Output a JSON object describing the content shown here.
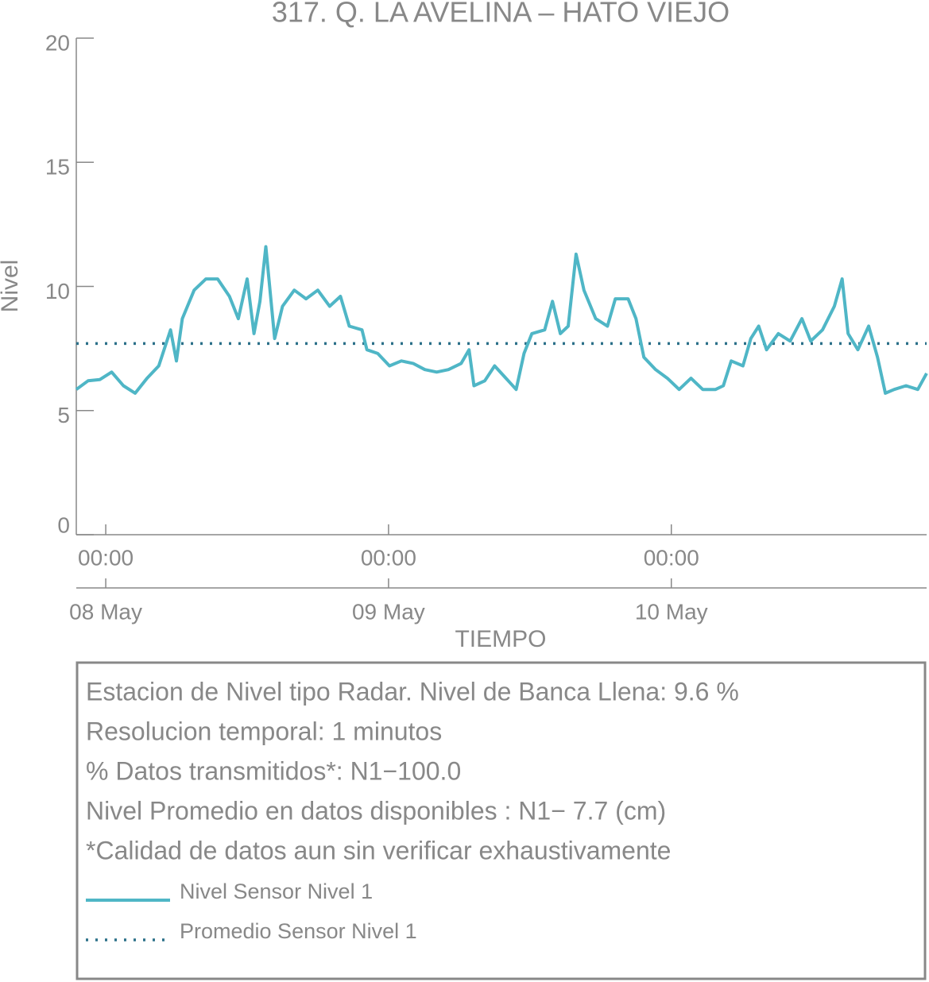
{
  "chart_data": {
    "type": "line",
    "title": "317. Q. LA AVELINA – HATO VIEJO",
    "xlabel": "TIEMPO",
    "ylabel": "Nivel",
    "x": [
      "07 May 21:30",
      "07 May 22:30",
      "07 May 23:30",
      "08 May 00:30",
      "08 May 01:30",
      "08 May 02:30",
      "08 May 03:30",
      "08 May 04:30",
      "08 May 05:30",
      "08 May 06:00",
      "08 May 06:30",
      "08 May 07:30",
      "08 May 08:30",
      "08 May 09:30",
      "08 May 10:30",
      "08 May 11:15",
      "08 May 12:00",
      "08 May 12:35",
      "08 May 13:05",
      "08 May 13:35",
      "08 May 14:20",
      "08 May 15:00",
      "08 May 16:00",
      "08 May 17:00",
      "08 May 18:00",
      "08 May 19:00",
      "08 May 19:55",
      "08 May 20:40",
      "08 May 21:45",
      "08 May 22:10",
      "08 May 23:05",
      "09 May 00:05",
      "09 May 01:05",
      "09 May 02:05",
      "09 May 03:05",
      "09 May 04:05",
      "09 May 05:05",
      "09 May 06:10",
      "09 May 06:50",
      "09 May 07:15",
      "09 May 08:10",
      "09 May 09:00",
      "09 May 10:10",
      "09 May 10:50",
      "09 May 11:30",
      "09 May 12:10",
      "09 May 13:15",
      "09 May 13:55",
      "09 May 14:35",
      "09 May 15:15",
      "09 May 15:55",
      "09 May 16:35",
      "09 May 17:35",
      "09 May 18:35",
      "09 May 19:15",
      "09 May 20:20",
      "09 May 21:00",
      "09 May 21:40",
      "09 May 22:40",
      "09 May 23:40",
      "10 May 00:40",
      "10 May 01:40",
      "10 May 02:40",
      "10 May 03:45",
      "10 May 04:25",
      "10 May 05:05",
      "10 May 06:05",
      "10 May 06:45",
      "10 May 07:25",
      "10 May 08:05",
      "10 May 09:05",
      "10 May 10:05",
      "10 May 11:05",
      "10 May 11:50",
      "10 May 12:50",
      "10 May 13:50",
      "10 May 14:30",
      "10 May 15:00",
      "10 May 15:50",
      "10 May 16:45",
      "10 May 17:30",
      "10 May 18:10",
      "10 May 18:55",
      "10 May 19:55",
      "10 May 20:55",
      "10 May 21:40"
    ],
    "series": [
      {
        "name": "Nivel Sensor Nivel 1",
        "color": "#4fb6c6",
        "values": [
          5.85,
          6.2,
          6.25,
          6.55,
          6.0,
          5.7,
          6.3,
          6.8,
          8.25,
          7.0,
          8.7,
          9.85,
          10.3,
          10.3,
          9.6,
          8.7,
          10.3,
          8.1,
          9.4,
          11.6,
          7.9,
          9.2,
          9.85,
          9.5,
          9.85,
          9.2,
          9.6,
          8.4,
          8.25,
          7.45,
          7.3,
          6.8,
          7.0,
          6.9,
          6.65,
          6.55,
          6.65,
          6.9,
          7.45,
          6.0,
          6.2,
          6.8,
          6.2,
          5.85,
          7.3,
          8.1,
          8.25,
          9.4,
          8.1,
          8.4,
          11.3,
          9.85,
          8.7,
          8.4,
          9.5,
          9.5,
          8.7,
          7.15,
          6.65,
          6.3,
          5.85,
          6.3,
          5.85,
          5.85,
          6.0,
          7.0,
          6.8,
          7.9,
          8.4,
          7.45,
          8.1,
          7.8,
          8.7,
          7.8,
          8.25,
          9.2,
          10.3,
          8.1,
          7.45,
          8.4,
          7.15,
          5.7,
          5.85,
          6.0,
          5.85,
          6.5
        ]
      }
    ],
    "mean_line": {
      "name": "Promedio Sensor Nivel 1",
      "value": 7.7,
      "color": "#2b7089"
    },
    "xlim": [
      "07 May 21:30",
      "10 May 21:40"
    ],
    "ylim": [
      0,
      20
    ],
    "yticks": [
      0,
      5,
      10,
      15,
      20
    ],
    "xticks": [
      {
        "value": "08 May 00:00",
        "label": "00:00"
      },
      {
        "value": "09 May 00:00",
        "label": "00:00"
      },
      {
        "value": "10 May 00:00",
        "label": "00:00"
      }
    ],
    "xticks_day": [
      {
        "value": "08 May 00:00",
        "label": "08 May"
      },
      {
        "value": "09 May 00:00",
        "label": "09 May"
      },
      {
        "value": "10 May 00:00",
        "label": "10 May"
      }
    ],
    "notes": [
      "Estacion de Nivel tipo Radar. Nivel de Banca Llena:  9.6 %",
      "Resolucion temporal: 1 minutos",
      "% Datos transmitidos*: N1−100.0",
      "Nivel Promedio en datos disponibles : N1−  7.7 (cm)",
      "*Calidad de datos aun sin verificar exhaustivamente"
    ]
  }
}
